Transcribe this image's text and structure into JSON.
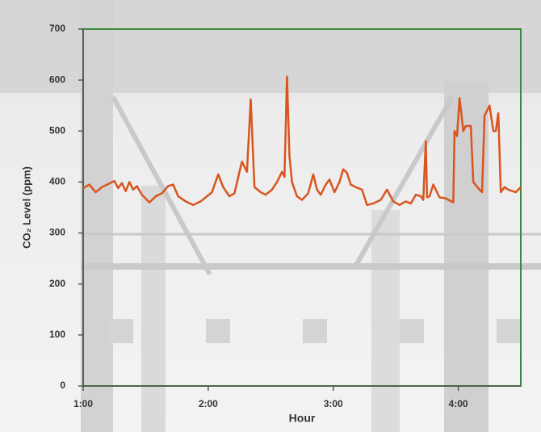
{
  "chart_data": {
    "type": "line",
    "x_label": "Hour",
    "y_label": "CO₂ Level (ppm)",
    "xlim": [
      1,
      4.5
    ],
    "xticks": [
      {
        "value": 1,
        "label": "1:00"
      },
      {
        "value": 2,
        "label": "2:00"
      },
      {
        "value": 3,
        "label": "3:00"
      },
      {
        "value": 4,
        "label": "4:00"
      }
    ],
    "ylim": [
      0,
      700
    ],
    "yticks": [
      0,
      100,
      200,
      300,
      400,
      500,
      600,
      700
    ],
    "grid": false,
    "x": [
      1.0,
      1.05,
      1.1,
      1.15,
      1.2,
      1.25,
      1.28,
      1.31,
      1.34,
      1.37,
      1.4,
      1.43,
      1.47,
      1.53,
      1.58,
      1.63,
      1.68,
      1.72,
      1.76,
      1.82,
      1.88,
      1.94,
      1.99,
      2.03,
      2.08,
      2.12,
      2.17,
      2.21,
      2.25,
      2.27,
      2.31,
      2.34,
      2.37,
      2.42,
      2.46,
      2.51,
      2.55,
      2.59,
      2.61,
      2.63,
      2.65,
      2.67,
      2.71,
      2.75,
      2.8,
      2.84,
      2.87,
      2.9,
      2.94,
      2.97,
      3.01,
      3.05,
      3.08,
      3.11,
      3.14,
      3.18,
      3.23,
      3.27,
      3.32,
      3.38,
      3.43,
      3.48,
      3.53,
      3.58,
      3.62,
      3.66,
      3.7,
      3.72,
      3.74,
      3.75,
      3.77,
      3.8,
      3.85,
      3.9,
      3.96,
      3.97,
      3.99,
      4.01,
      4.04,
      4.06,
      4.1,
      4.12,
      4.17,
      4.19,
      4.21,
      4.25,
      4.28,
      4.3,
      4.32,
      4.34,
      4.37,
      4.4,
      4.46,
      4.5
    ],
    "series": [
      {
        "color": "#d9541e",
        "values": [
          388,
          395,
          380,
          390,
          396,
          402,
          388,
          398,
          382,
          400,
          385,
          392,
          375,
          360,
          372,
          378,
          392,
          395,
          372,
          362,
          355,
          362,
          372,
          380,
          415,
          390,
          372,
          378,
          420,
          440,
          420,
          562,
          390,
          380,
          375,
          385,
          400,
          420,
          410,
          607,
          450,
          400,
          372,
          365,
          378,
          415,
          385,
          375,
          395,
          405,
          380,
          400,
          425,
          418,
          395,
          390,
          385,
          355,
          358,
          365,
          385,
          362,
          355,
          362,
          358,
          375,
          372,
          365,
          480,
          370,
          372,
          395,
          370,
          368,
          360,
          500,
          490,
          565,
          500,
          510,
          510,
          400,
          385,
          380,
          530,
          550,
          500,
          500,
          535,
          380,
          390,
          385,
          380,
          390
        ]
      }
    ]
  }
}
